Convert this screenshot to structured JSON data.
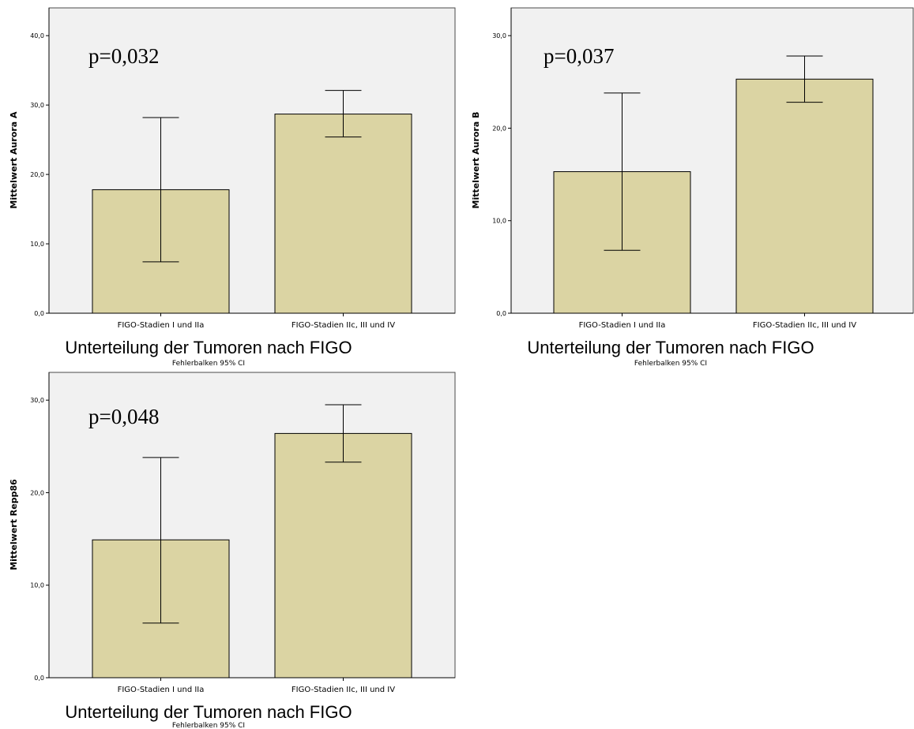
{
  "chart_data": [
    {
      "type": "bar",
      "categories": [
        "FIGO-Stadien I und IIa",
        "FIGO-Stadien IIc, III und IV"
      ],
      "values": [
        17.8,
        28.7
      ],
      "error_bars": {
        "lower": [
          7.4,
          25.4
        ],
        "upper": [
          28.2,
          32.1
        ]
      },
      "ylim": [
        0,
        44
      ],
      "yticks": [
        0,
        10,
        20,
        30,
        40
      ],
      "yticklabels": [
        "0,0",
        "10,0",
        "20,0",
        "30,0",
        "40,0"
      ],
      "ylabel": "Mittelwert Aurora A",
      "xlabel": "Unterteilung der Tumoren nach FIGO",
      "subtitle": "Fehlerbalken 95% CI",
      "annotation": "p=0,032",
      "bar_color": "#dbd4a3",
      "background": "#f1f1f1",
      "grid": false
    },
    {
      "type": "bar",
      "categories": [
        "FIGO-Stadien I und IIa",
        "FIGO-Stadien IIc, III und IV"
      ],
      "values": [
        15.3,
        25.3
      ],
      "error_bars": {
        "lower": [
          6.8,
          22.8
        ],
        "upper": [
          23.8,
          27.8
        ]
      },
      "ylim": [
        0,
        33
      ],
      "yticks": [
        0,
        10,
        20,
        30
      ],
      "yticklabels": [
        "0,0",
        "10,0",
        "20,0",
        "30,0"
      ],
      "ylabel": "Mittelwert Aurora B",
      "xlabel": "Unterteilung der Tumoren nach FIGO",
      "subtitle": "Fehlerbalken 95% CI",
      "annotation": "p=0,037",
      "bar_color": "#dbd4a3",
      "background": "#f1f1f1",
      "grid": false
    },
    {
      "type": "bar",
      "categories": [
        "FIGO-Stadien I und IIa",
        "FIGO-Stadien IIc, III und IV"
      ],
      "values": [
        14.9,
        26.4
      ],
      "error_bars": {
        "lower": [
          5.9,
          23.3
        ],
        "upper": [
          23.8,
          29.5
        ]
      },
      "ylim": [
        0,
        33
      ],
      "yticks": [
        0,
        10,
        20,
        30
      ],
      "yticklabels": [
        "0,0",
        "10,0",
        "20,0",
        "30,0"
      ],
      "ylabel": "Mittelwert Repp86",
      "xlabel": "Unterteilung der Tumoren nach FIGO",
      "subtitle": "Fehlerbalken 95% CI",
      "annotation": "p=0,048",
      "bar_color": "#dbd4a3",
      "background": "#f1f1f1",
      "grid": false
    }
  ]
}
